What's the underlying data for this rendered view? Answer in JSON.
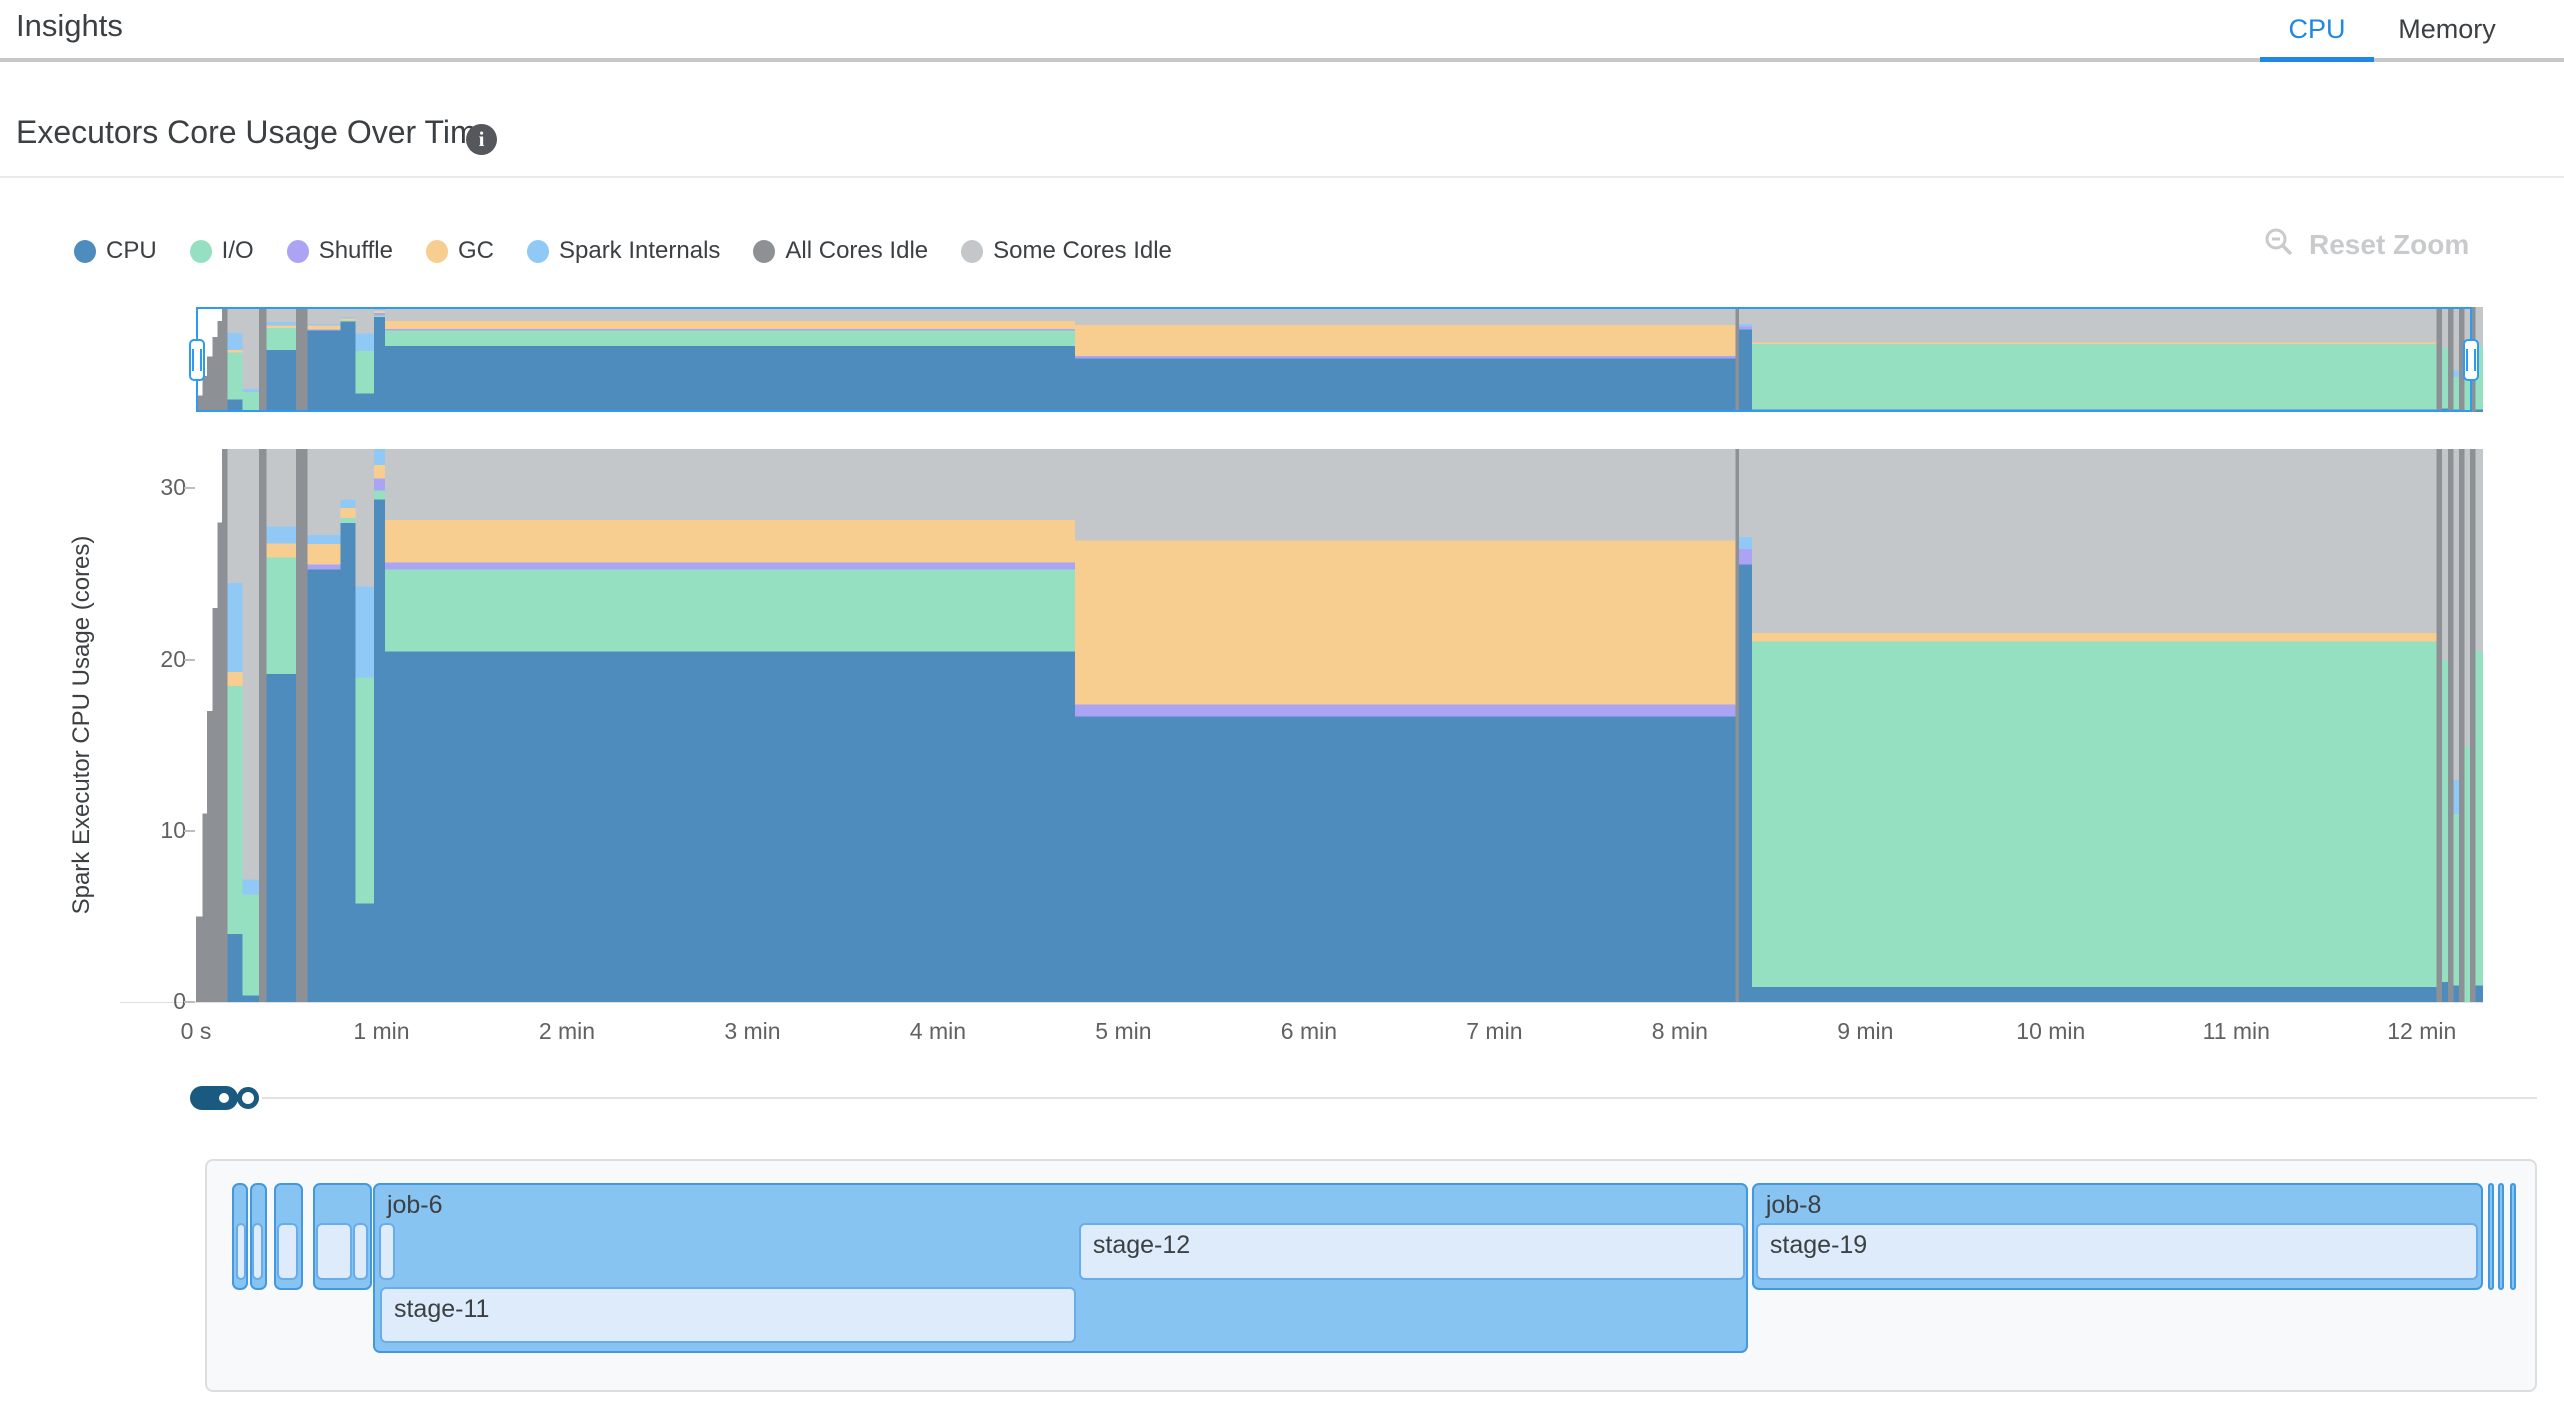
{
  "header": {
    "title": "Insights",
    "tabs": [
      {
        "label": "CPU",
        "active": true
      },
      {
        "label": "Memory",
        "active": false
      }
    ]
  },
  "section": {
    "title": "Executors Core Usage Over Time",
    "info_icon": "i"
  },
  "toolbar": {
    "reset_zoom_label": "Reset Zoom"
  },
  "colors": {
    "accent_blue": "#1e88e5",
    "brush_blue": "#2e9bf0",
    "cpu": "#4e8cbe",
    "io": "#96e0c2",
    "shuffle": "#aba4f5",
    "gc": "#f7cd90",
    "internals": "#90c8f6",
    "idle_all": "#8d9195",
    "idle_some": "#c4c7c9",
    "job_fill": "#87c4f1",
    "job_border": "#4398de",
    "stage_fill": "#ddebfb",
    "stage_border": "#68ace9"
  },
  "legend": [
    {
      "key": "cpu",
      "label": "CPU"
    },
    {
      "key": "io",
      "label": "I/O"
    },
    {
      "key": "shuffle",
      "label": "Shuffle"
    },
    {
      "key": "gc",
      "label": "GC"
    },
    {
      "key": "internals",
      "label": "Spark Internals"
    },
    {
      "key": "idle_all",
      "label": "All Cores Idle"
    },
    {
      "key": "idle_some",
      "label": "Some Cores Idle"
    }
  ],
  "chart_data": [
    {
      "type": "area",
      "title": "Executors Core Usage Over Time",
      "ylabel": "Spark Executor CPU Usage (cores)",
      "xlabel": "",
      "y_ticks": [
        0,
        10,
        20,
        30
      ],
      "y_max": 32.3,
      "x_range_minutes": [
        0,
        12.33
      ],
      "x_ticks": [
        {
          "t": 0,
          "label": "0 s"
        },
        {
          "t": 1,
          "label": "1 min"
        },
        {
          "t": 2,
          "label": "2 min"
        },
        {
          "t": 3,
          "label": "3 min"
        },
        {
          "t": 4,
          "label": "4 min"
        },
        {
          "t": 5,
          "label": "5 min"
        },
        {
          "t": 6,
          "label": "6 min"
        },
        {
          "t": 7,
          "label": "7 min"
        },
        {
          "t": 8,
          "label": "8 min"
        },
        {
          "t": 9,
          "label": "9 min"
        },
        {
          "t": 10,
          "label": "10 min"
        },
        {
          "t": 11,
          "label": "11 min"
        },
        {
          "t": 12,
          "label": "12 min"
        }
      ],
      "legend_position": "top-left",
      "grid": false,
      "series_order": [
        "cpu",
        "io",
        "shuffle",
        "gc",
        "internals",
        "idle_all",
        "idle_some"
      ],
      "segments": [
        {
          "t0": 0.0,
          "t1": 0.035,
          "stack": [
            [
              "idle_all",
              5
            ]
          ]
        },
        {
          "t0": 0.035,
          "t1": 0.06,
          "stack": [
            [
              "idle_all",
              11
            ]
          ]
        },
        {
          "t0": 0.06,
          "t1": 0.09,
          "stack": [
            [
              "idle_all",
              17
            ]
          ]
        },
        {
          "t0": 0.09,
          "t1": 0.115,
          "stack": [
            [
              "idle_all",
              23
            ]
          ]
        },
        {
          "t0": 0.115,
          "t1": 0.14,
          "stack": [
            [
              "idle_all",
              28
            ]
          ]
        },
        {
          "t0": 0.14,
          "t1": 0.17,
          "stack": [
            [
              "idle_all",
              32.3
            ]
          ]
        },
        {
          "t0": 0.17,
          "t1": 0.25,
          "stack": [
            [
              "cpu",
              4
            ],
            [
              "io",
              14.5
            ],
            [
              "gc",
              0.8
            ],
            [
              "internals",
              5.2
            ],
            [
              "idle_some",
              7.8
            ]
          ]
        },
        {
          "t0": 0.25,
          "t1": 0.34,
          "stack": [
            [
              "cpu",
              0.4
            ],
            [
              "io",
              5.9
            ],
            [
              "internals",
              0.9
            ],
            [
              "idle_some",
              25.1
            ]
          ]
        },
        {
          "t0": 0.34,
          "t1": 0.38,
          "stack": [
            [
              "idle_all",
              32.3
            ]
          ]
        },
        {
          "t0": 0.38,
          "t1": 0.54,
          "stack": [
            [
              "cpu",
              19.2
            ],
            [
              "io",
              6.8
            ],
            [
              "gc",
              0.8
            ],
            [
              "internals",
              1.0
            ],
            [
              "idle_some",
              4.5
            ]
          ]
        },
        {
          "t0": 0.54,
          "t1": 0.6,
          "stack": [
            [
              "idle_all",
              32.3
            ]
          ]
        },
        {
          "t0": 0.6,
          "t1": 0.78,
          "stack": [
            [
              "cpu",
              25.3
            ],
            [
              "shuffle",
              0.3
            ],
            [
              "gc",
              1.2
            ],
            [
              "internals",
              0.5
            ],
            [
              "idle_some",
              5.0
            ]
          ]
        },
        {
          "t0": 0.78,
          "t1": 0.86,
          "stack": [
            [
              "cpu",
              28.0
            ],
            [
              "io",
              0.3
            ],
            [
              "gc",
              0.6
            ],
            [
              "internals",
              0.5
            ],
            [
              "idle_some",
              2.9
            ]
          ]
        },
        {
          "t0": 0.86,
          "t1": 0.96,
          "stack": [
            [
              "cpu",
              5.8
            ],
            [
              "io",
              13.2
            ],
            [
              "internals",
              5.3
            ],
            [
              "idle_some",
              8.0
            ]
          ]
        },
        {
          "t0": 0.96,
          "t1": 1.02,
          "stack": [
            [
              "cpu",
              29.4
            ],
            [
              "io",
              0.5
            ],
            [
              "shuffle",
              0.7
            ],
            [
              "gc",
              0.8
            ],
            [
              "internals",
              0.9
            ]
          ]
        },
        {
          "t0": 1.02,
          "t1": 4.74,
          "stack": [
            [
              "cpu",
              20.5
            ],
            [
              "io",
              4.8
            ],
            [
              "shuffle",
              0.4
            ],
            [
              "gc",
              2.5
            ],
            [
              "idle_some",
              4.1
            ]
          ]
        },
        {
          "t0": 4.74,
          "t1": 8.3,
          "stack": [
            [
              "cpu",
              16.7
            ],
            [
              "shuffle",
              0.7
            ],
            [
              "gc",
              9.6
            ],
            [
              "idle_some",
              5.3
            ]
          ]
        },
        {
          "t0": 8.3,
          "t1": 8.32,
          "stack": [
            [
              "idle_all",
              32.3
            ]
          ]
        },
        {
          "t0": 8.32,
          "t1": 8.39,
          "stack": [
            [
              "cpu",
              25.6
            ],
            [
              "shuffle",
              0.9
            ],
            [
              "internals",
              0.7
            ],
            [
              "idle_some",
              5.1
            ]
          ]
        },
        {
          "t0": 8.39,
          "t1": 12.08,
          "stack": [
            [
              "cpu",
              0.9
            ],
            [
              "io",
              20.2
            ],
            [
              "gc",
              0.5
            ],
            [
              "idle_some",
              10.7
            ]
          ]
        },
        {
          "t0": 12.08,
          "t1": 12.11,
          "stack": [
            [
              "idle_all",
              32.3
            ]
          ]
        },
        {
          "t0": 12.11,
          "t1": 12.14,
          "stack": [
            [
              "cpu",
              1.2
            ],
            [
              "io",
              18.8
            ],
            [
              "idle_some",
              12.3
            ]
          ]
        },
        {
          "t0": 12.14,
          "t1": 12.17,
          "stack": [
            [
              "idle_all",
              32.3
            ]
          ]
        },
        {
          "t0": 12.17,
          "t1": 12.2,
          "stack": [
            [
              "cpu",
              1.0
            ],
            [
              "io",
              10.0
            ],
            [
              "internals",
              2.0
            ],
            [
              "idle_some",
              19.3
            ]
          ]
        },
        {
          "t0": 12.2,
          "t1": 12.23,
          "stack": [
            [
              "idle_all",
              32.3
            ]
          ]
        },
        {
          "t0": 12.23,
          "t1": 12.26,
          "stack": [
            [
              "io",
              15.0
            ],
            [
              "idle_some",
              17.3
            ]
          ]
        },
        {
          "t0": 12.26,
          "t1": 12.29,
          "stack": [
            [
              "idle_all",
              32.3
            ]
          ]
        },
        {
          "t0": 12.29,
          "t1": 12.33,
          "stack": [
            [
              "cpu",
              1.0
            ],
            [
              "io",
              19.5
            ],
            [
              "idle_some",
              11.8
            ]
          ]
        }
      ],
      "overview_brush": {
        "t0": 0,
        "t1": 12.27
      }
    },
    {
      "type": "gantt",
      "jobs": [
        {
          "label": "",
          "t0": 0.194,
          "t1": 0.28,
          "tall": false,
          "stages": [
            {
              "label": "",
              "t0": 0.216,
              "t1": 0.27,
              "row": 1
            }
          ]
        },
        {
          "label": "",
          "t0": 0.291,
          "t1": 0.383,
          "tall": false,
          "stages": [
            {
              "label": "",
              "t0": 0.302,
              "t1": 0.361,
              "row": 1
            }
          ]
        },
        {
          "label": "",
          "t0": 0.42,
          "t1": 0.577,
          "tall": false,
          "stages": [
            {
              "label": "",
              "t0": 0.437,
              "t1": 0.55,
              "row": 1
            }
          ]
        },
        {
          "label": "",
          "t0": 0.631,
          "t1": 0.949,
          "tall": false,
          "stages": [
            {
              "label": "",
              "t0": 0.647,
              "t1": 0.841,
              "row": 1
            },
            {
              "label": "",
              "t0": 0.846,
              "t1": 0.927,
              "row": 1
            }
          ]
        },
        {
          "label": "job-6",
          "t0": 0.954,
          "t1": 8.367,
          "tall": true,
          "stages": [
            {
              "label": "",
              "t0": 0.986,
              "t1": 1.073,
              "row": 1
            },
            {
              "label": "stage-12",
              "t0": 4.76,
              "t1": 8.351,
              "row": 1
            },
            {
              "label": "stage-11",
              "t0": 0.992,
              "t1": 4.744,
              "row": 2
            }
          ]
        },
        {
          "label": "job-8",
          "t0": 8.388,
          "t1": 12.329,
          "tall": false,
          "stages": [
            {
              "label": "stage-19",
              "t0": 8.41,
              "t1": 12.302,
              "row": 1
            }
          ]
        },
        {
          "label": "",
          "t0": 12.356,
          "t1": 12.388,
          "tall": false,
          "stages": []
        },
        {
          "label": "",
          "t0": 12.41,
          "t1": 12.442,
          "tall": false,
          "stages": []
        },
        {
          "label": "",
          "t0": 12.474,
          "t1": 12.507,
          "tall": false,
          "stages": []
        }
      ]
    }
  ]
}
